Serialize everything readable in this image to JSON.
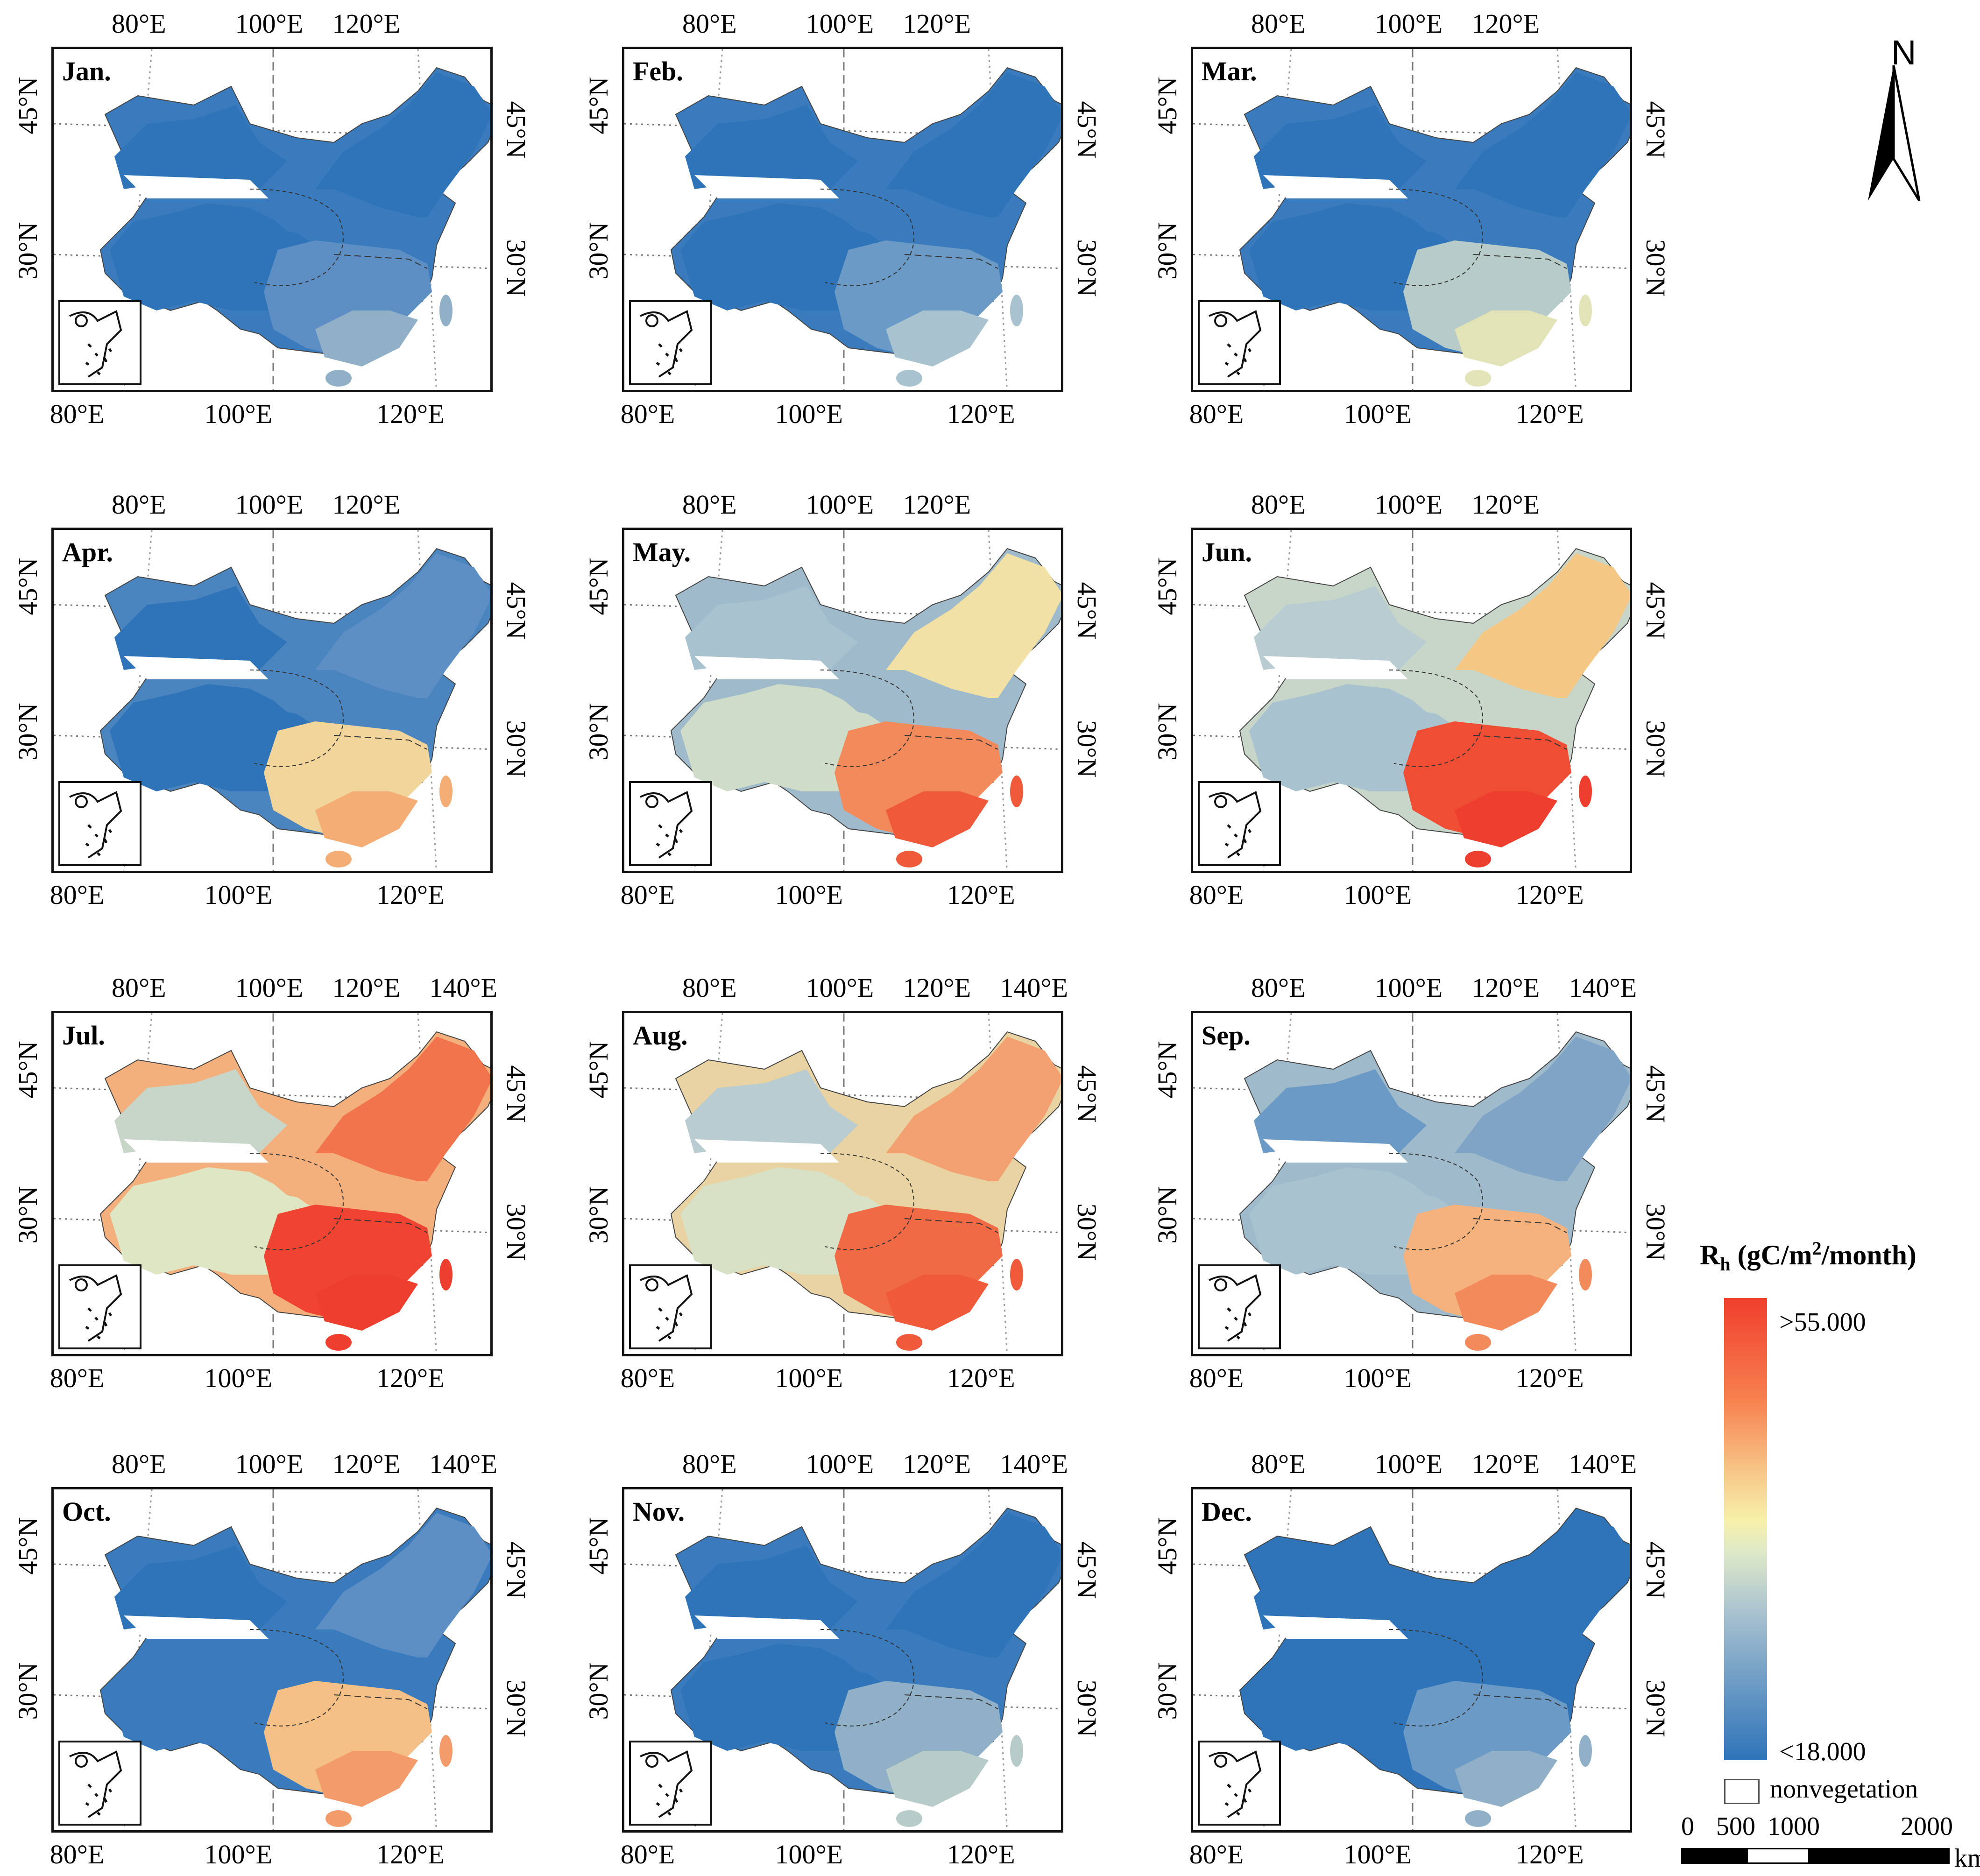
{
  "panels": [
    {
      "month": "Jan.",
      "top_lon": [
        "80°E",
        "100°E",
        "120°E"
      ],
      "bottom_lon": [
        "80°E",
        "100°E",
        "120°E"
      ],
      "lat_left": [
        "45°N",
        "30°N"
      ],
      "lat_right": [
        "45°N",
        "30°N"
      ],
      "colors": {
        "nw": "#2f74b9",
        "ne": "#2f74b9",
        "tb": "#2f74b9",
        "se": "#5d8fc4",
        "ss": "#8fb0c7",
        "nc": "#3a7bbd"
      }
    },
    {
      "month": "Feb.",
      "top_lon": [
        "80°E",
        "100°E",
        "120°E"
      ],
      "bottom_lon": [
        "80°E",
        "100°E",
        "120°E"
      ],
      "lat_left": [
        "45°N",
        "30°N"
      ],
      "lat_right": [
        "45°N",
        "30°N"
      ],
      "colors": {
        "nw": "#2f74b9",
        "ne": "#2f74b9",
        "tb": "#2f74b9",
        "se": "#6a9ac5",
        "ss": "#a9c2cf",
        "nc": "#3a7bbd"
      }
    },
    {
      "month": "Mar.",
      "top_lon": [
        "80°E",
        "100°E",
        "120°E"
      ],
      "bottom_lon": [
        "80°E",
        "100°E",
        "120°E"
      ],
      "lat_left": [
        "45°N",
        "30°N"
      ],
      "lat_right": [
        "45°N",
        "30°N"
      ],
      "colors": {
        "nw": "#2f74b9",
        "ne": "#2f74b9",
        "tb": "#2f74b9",
        "se": "#b7cbc8",
        "ss": "#e3e3b8",
        "nc": "#3a7bbd"
      }
    },
    {
      "month": "Apr.",
      "top_lon": [
        "80°E",
        "100°E",
        "120°E"
      ],
      "bottom_lon": [
        "80°E",
        "100°E",
        "120°E"
      ],
      "lat_left": [
        "45°N",
        "30°N"
      ],
      "lat_right": [
        "45°N",
        "30°N"
      ],
      "colors": {
        "nw": "#2f74b9",
        "ne": "#5d8fc4",
        "tb": "#2f74b9",
        "se": "#f2d59a",
        "ss": "#f5ad76",
        "nc": "#4a85c0"
      }
    },
    {
      "month": "May.",
      "top_lon": [
        "80°E",
        "100°E",
        "120°E"
      ],
      "bottom_lon": [
        "80°E",
        "100°E",
        "120°E"
      ],
      "lat_left": [
        "45°N",
        "30°N"
      ],
      "lat_right": [
        "45°N",
        "30°N"
      ],
      "colors": {
        "nw": "#a9c2cf",
        "ne": "#f2e1a4",
        "tb": "#cfdcc8",
        "se": "#f28a5c",
        "ss": "#ef5a3b",
        "nc": "#9fbacb"
      }
    },
    {
      "month": "Jun.",
      "top_lon": [
        "80°E",
        "100°E",
        "120°E"
      ],
      "bottom_lon": [
        "80°E",
        "100°E",
        "120°E"
      ],
      "lat_left": [
        "45°N",
        "30°N"
      ],
      "lat_right": [
        "45°N",
        "30°N"
      ],
      "colors": {
        "nw": "#b9ccd1",
        "ne": "#f4c785",
        "tb": "#a9c2cf",
        "se": "#f04d35",
        "ss": "#ee3f2e",
        "nc": "#c7d6c9"
      }
    },
    {
      "month": "Jul.",
      "top_lon": [
        "80°E",
        "100°E",
        "120°E",
        "140°E"
      ],
      "bottom_lon": [
        "80°E",
        "100°E",
        "120°E"
      ],
      "lat_left": [
        "45°N",
        "30°N"
      ],
      "lat_right": [
        "45°N",
        "30°N"
      ],
      "colors": {
        "nw": "#c7d6c9",
        "ne": "#f2744d",
        "tb": "#dfe6c3",
        "se": "#ee4431",
        "ss": "#ee3f2e",
        "nc": "#f3b07c"
      }
    },
    {
      "month": "Aug.",
      "top_lon": [
        "80°E",
        "100°E",
        "120°E",
        "140°E"
      ],
      "bottom_lon": [
        "80°E",
        "100°E",
        "120°E"
      ],
      "lat_left": [
        "45°N",
        "30°N"
      ],
      "lat_right": [
        "45°N",
        "30°N"
      ],
      "colors": {
        "nw": "#b9ccd1",
        "ne": "#f3a170",
        "tb": "#d7e1c6",
        "se": "#f06a46",
        "ss": "#ef5a3b",
        "nc": "#e9d3a3"
      }
    },
    {
      "month": "Sep.",
      "top_lon": [
        "80°E",
        "100°E",
        "120°E",
        "140°E"
      ],
      "bottom_lon": [
        "80°E",
        "100°E",
        "120°E"
      ],
      "lat_left": [
        "45°N",
        "30°N"
      ],
      "lat_right": [
        "45°N",
        "30°N"
      ],
      "colors": {
        "nw": "#6a9ac5",
        "ne": "#7fa4c6",
        "tb": "#a9c2cf",
        "se": "#f5b27c",
        "ss": "#f28a5c",
        "nc": "#9fbacb"
      }
    },
    {
      "month": "Oct.",
      "top_lon": [
        "80°E",
        "100°E",
        "120°E",
        "140°E"
      ],
      "bottom_lon": [
        "80°E",
        "100°E",
        "120°E"
      ],
      "lat_left": [
        "45°N",
        "30°N"
      ],
      "lat_right": [
        "45°N",
        "30°N"
      ],
      "colors": {
        "nw": "#2f74b9",
        "ne": "#5d8fc4",
        "tb": "#3a7bbd",
        "se": "#f4c085",
        "ss": "#f39b6b",
        "nc": "#3a7bbd"
      }
    },
    {
      "month": "Nov.",
      "top_lon": [
        "80°E",
        "100°E",
        "120°E",
        "140°E"
      ],
      "bottom_lon": [
        "80°E",
        "100°E",
        "120°E"
      ],
      "lat_left": [
        "45°N",
        "30°N"
      ],
      "lat_right": [
        "45°N",
        "30°N"
      ],
      "colors": {
        "nw": "#2f74b9",
        "ne": "#2f74b9",
        "tb": "#2f74b9",
        "se": "#8fb0c7",
        "ss": "#b7cbc8",
        "nc": "#3a7bbd"
      }
    },
    {
      "month": "Dec.",
      "top_lon": [
        "80°E",
        "100°E",
        "120°E",
        "140°E"
      ],
      "bottom_lon": [
        "80°E",
        "100°E",
        "120°E"
      ],
      "lat_left": [
        "45°N",
        "30°N"
      ],
      "lat_right": [
        "45°N",
        "30°N"
      ],
      "colors": {
        "nw": "#2f74b9",
        "ne": "#2f74b9",
        "tb": "#2f74b9",
        "se": "#6a9ac5",
        "ss": "#8fb0c7",
        "nc": "#2f74b9"
      }
    }
  ],
  "north_arrow": {
    "label": "N",
    "icon": "north-arrow-icon"
  },
  "legend": {
    "title_main": "R",
    "title_sub": "h",
    "title_rest_a": " (gC/m",
    "title_sup": "2",
    "title_rest_b": "/month)",
    "max_label": ">55.000",
    "min_label": "<18.000",
    "nonveg_label": "nonvegetation",
    "colors": {
      "high": "#f03e2e",
      "mid": "#f7f0a8",
      "low": "#2f74b9"
    }
  },
  "scale": {
    "labels": [
      "0",
      "500",
      "1000",
      "2000"
    ],
    "unit": "km"
  }
}
